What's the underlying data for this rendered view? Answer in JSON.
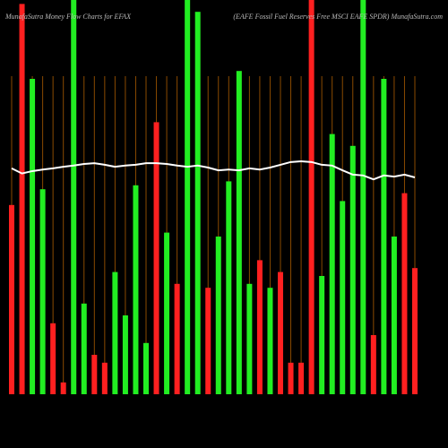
{
  "chart_data": {
    "type": "bar",
    "title": "MunafaSutra  Money Flow  Charts for EFAX",
    "subtitle": "(EAFE Fossil Fuel Reserves Free   MSCI EAFE SPDR) MunafaSutra.com",
    "categories": [
      null,
      null,
      null,
      null,
      null,
      null,
      null,
      null,
      null,
      null,
      null,
      null,
      null,
      null,
      null,
      null,
      null,
      null,
      null,
      null,
      null,
      null,
      null,
      null,
      null,
      null,
      null,
      null,
      null,
      null,
      null,
      null,
      null,
      null,
      null,
      null,
      null,
      null,
      null,
      null
    ],
    "series": [
      {
        "colors": [
          "#ff2020",
          "#ff2020",
          "#22ee22",
          "#22ee22",
          "#ff2020",
          "#ff2020",
          "#22ee22",
          "#22ee22",
          "#ff2020",
          "#ff2020",
          "#22ee22",
          "#22ee22",
          "#22ee22",
          "#22ee22",
          "#ff2020",
          "#22ee22",
          "#ff2020",
          "#22ee22",
          "#22ee22",
          "#ff2020",
          "#22ee22",
          "#22ee22",
          "#22ee22",
          "#22ee22",
          "#ff2020",
          "#22ee22",
          "#ff2020",
          "#ff2020",
          "#ff2020",
          "#ff2020",
          "#22ee22",
          "#22ee22",
          "#22ee22",
          "#22ee22",
          "#22ee22",
          "#ff2020",
          "#22ee22",
          "#22ee22",
          "#ff2020",
          "#ff2020"
        ],
        "values": [
          48,
          99,
          80,
          52,
          18,
          3,
          105,
          23,
          10,
          8,
          31,
          20,
          53,
          13,
          69,
          41,
          28,
          105,
          97,
          27,
          40,
          54,
          82,
          28,
          34,
          27,
          31,
          8,
          8,
          105,
          30,
          66,
          49,
          63,
          105,
          15,
          80,
          40,
          51,
          32
        ]
      },
      {
        "type": "line",
        "color": "#ffffff",
        "values": [
          57.3,
          56,
          56.6,
          57,
          57.3,
          57.7,
          58,
          58.4,
          58.6,
          58.2,
          57.7,
          58,
          58.2,
          58.6,
          58.6,
          58.4,
          58,
          57.7,
          58,
          57.5,
          56.8,
          57,
          56.8,
          57.3,
          57,
          57.5,
          58.2,
          58.9,
          59.1,
          58.9,
          58.2,
          58,
          56.8,
          55.7,
          55.5,
          54.5,
          55.5,
          55.2,
          55.7,
          55
        ]
      }
    ],
    "ylim": [
      0,
      100
    ],
    "grid": true,
    "grid_color": "#8a4a00"
  }
}
